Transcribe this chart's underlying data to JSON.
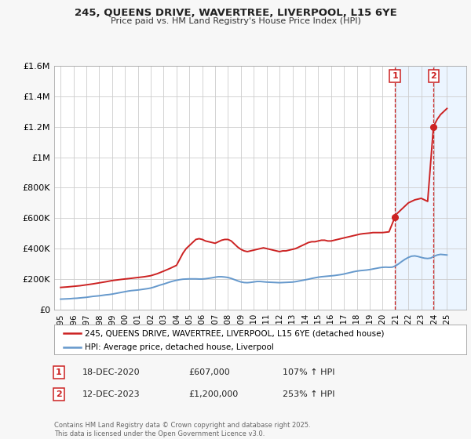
{
  "title": "245, QUEENS DRIVE, WAVERTREE, LIVERPOOL, L15 6YE",
  "subtitle": "Price paid vs. HM Land Registry's House Price Index (HPI)",
  "ylim": [
    0,
    1600000
  ],
  "xlim": [
    1994.5,
    2026.5
  ],
  "yticks": [
    0,
    200000,
    400000,
    600000,
    800000,
    1000000,
    1200000,
    1400000,
    1600000
  ],
  "ytick_labels": [
    "£0",
    "£200K",
    "£400K",
    "£600K",
    "£800K",
    "£1M",
    "£1.2M",
    "£1.4M",
    "£1.6M"
  ],
  "xtick_years": [
    1995,
    1996,
    1997,
    1998,
    1999,
    2000,
    2001,
    2002,
    2003,
    2004,
    2005,
    2006,
    2007,
    2008,
    2009,
    2010,
    2011,
    2012,
    2013,
    2014,
    2015,
    2016,
    2017,
    2018,
    2019,
    2020,
    2021,
    2022,
    2023,
    2024,
    2025
  ],
  "hpi_color": "#6699cc",
  "price_color": "#cc2222",
  "marker1_x": 2020.96,
  "marker1_y": 607000,
  "marker2_x": 2023.95,
  "marker2_y": 1200000,
  "vline1_x": 2020.96,
  "vline2_x": 2023.95,
  "shade_start": 2020.96,
  "shade_end": 2026.5,
  "legend_label1": "245, QUEENS DRIVE, WAVERTREE, LIVERPOOL, L15 6YE (detached house)",
  "legend_label2": "HPI: Average price, detached house, Liverpool",
  "ann1_label": "1",
  "ann2_label": "2",
  "ann1_date": "18-DEC-2020",
  "ann1_price": "£607,000",
  "ann1_hpi": "107% ↑ HPI",
  "ann2_date": "12-DEC-2023",
  "ann2_price": "£1,200,000",
  "ann2_hpi": "253% ↑ HPI",
  "footer": "Contains HM Land Registry data © Crown copyright and database right 2025.\nThis data is licensed under the Open Government Licence v3.0.",
  "bg_color": "#f7f7f7",
  "plot_bg_color": "#ffffff",
  "grid_color": "#cccccc",
  "shade_color": "#ddeeff",
  "hpi_data_x": [
    1995.0,
    1995.25,
    1995.5,
    1995.75,
    1996.0,
    1996.25,
    1996.5,
    1996.75,
    1997.0,
    1997.25,
    1997.5,
    1997.75,
    1998.0,
    1998.25,
    1998.5,
    1998.75,
    1999.0,
    1999.25,
    1999.5,
    1999.75,
    2000.0,
    2000.25,
    2000.5,
    2000.75,
    2001.0,
    2001.25,
    2001.5,
    2001.75,
    2002.0,
    2002.25,
    2002.5,
    2002.75,
    2003.0,
    2003.25,
    2003.5,
    2003.75,
    2004.0,
    2004.25,
    2004.5,
    2004.75,
    2005.0,
    2005.25,
    2005.5,
    2005.75,
    2006.0,
    2006.25,
    2006.5,
    2006.75,
    2007.0,
    2007.25,
    2007.5,
    2007.75,
    2008.0,
    2008.25,
    2008.5,
    2008.75,
    2009.0,
    2009.25,
    2009.5,
    2009.75,
    2010.0,
    2010.25,
    2010.5,
    2010.75,
    2011.0,
    2011.25,
    2011.5,
    2011.75,
    2012.0,
    2012.25,
    2012.5,
    2012.75,
    2013.0,
    2013.25,
    2013.5,
    2013.75,
    2014.0,
    2014.25,
    2014.5,
    2014.75,
    2015.0,
    2015.25,
    2015.5,
    2015.75,
    2016.0,
    2016.25,
    2016.5,
    2016.75,
    2017.0,
    2017.25,
    2017.5,
    2017.75,
    2018.0,
    2018.25,
    2018.5,
    2018.75,
    2019.0,
    2019.25,
    2019.5,
    2019.75,
    2020.0,
    2020.25,
    2020.5,
    2020.75,
    2021.0,
    2021.25,
    2021.5,
    2021.75,
    2022.0,
    2022.25,
    2022.5,
    2022.75,
    2023.0,
    2023.25,
    2023.5,
    2023.75,
    2024.0,
    2024.25,
    2024.5,
    2024.75,
    2025.0
  ],
  "hpi_data_y": [
    68000,
    69000,
    70000,
    71000,
    73000,
    74000,
    76000,
    78000,
    80000,
    83000,
    86000,
    88000,
    90000,
    93000,
    96000,
    98000,
    101000,
    105000,
    109000,
    113000,
    117000,
    121000,
    124000,
    126000,
    128000,
    131000,
    134000,
    137000,
    141000,
    147000,
    154000,
    161000,
    167000,
    174000,
    181000,
    187000,
    192000,
    196000,
    199000,
    200000,
    201000,
    201000,
    201000,
    200000,
    200000,
    202000,
    205000,
    208000,
    212000,
    215000,
    215000,
    213000,
    210000,
    204000,
    196000,
    188000,
    181000,
    177000,
    176000,
    178000,
    181000,
    184000,
    184000,
    182000,
    180000,
    179000,
    178000,
    177000,
    176000,
    177000,
    178000,
    179000,
    180000,
    183000,
    187000,
    191000,
    195000,
    199000,
    204000,
    208000,
    212000,
    215000,
    217000,
    219000,
    221000,
    223000,
    226000,
    229000,
    233000,
    238000,
    243000,
    248000,
    252000,
    255000,
    257000,
    259000,
    262000,
    266000,
    270000,
    274000,
    277000,
    278000,
    277000,
    278000,
    286000,
    300000,
    316000,
    330000,
    342000,
    350000,
    352000,
    348000,
    342000,
    337000,
    335000,
    338000,
    350000,
    358000,
    362000,
    360000,
    358000
  ],
  "price_data_x": [
    1995.0,
    1995.5,
    1996.0,
    1996.5,
    1997.0,
    1997.5,
    1998.0,
    1998.5,
    1999.0,
    1999.75,
    2000.5,
    2001.0,
    2001.5,
    2002.0,
    2002.5,
    2003.0,
    2003.5,
    2004.0,
    2004.5,
    2004.75,
    2005.0,
    2005.25,
    2005.5,
    2005.75,
    2006.0,
    2006.25,
    2006.5,
    2006.75,
    2007.0,
    2007.25,
    2007.5,
    2007.75,
    2008.0,
    2008.25,
    2008.5,
    2008.75,
    2009.0,
    2009.25,
    2009.5,
    2009.75,
    2010.0,
    2010.25,
    2010.5,
    2010.75,
    2011.0,
    2011.25,
    2011.5,
    2011.75,
    2012.0,
    2012.25,
    2012.5,
    2012.75,
    2013.0,
    2013.25,
    2013.5,
    2013.75,
    2014.0,
    2014.25,
    2014.5,
    2014.75,
    2015.0,
    2015.25,
    2015.5,
    2015.75,
    2016.0,
    2016.25,
    2016.5,
    2016.75,
    2017.0,
    2017.25,
    2017.5,
    2017.75,
    2018.0,
    2018.25,
    2018.5,
    2018.75,
    2019.0,
    2019.25,
    2019.5,
    2019.75,
    2020.0,
    2020.5,
    2020.96,
    2021.0,
    2021.25,
    2021.5,
    2021.75,
    2022.0,
    2022.25,
    2022.5,
    2022.75,
    2023.0,
    2023.25,
    2023.5,
    2023.95,
    2024.0,
    2024.25,
    2024.5,
    2024.75,
    2025.0
  ],
  "price_data_y": [
    145000,
    148000,
    152000,
    156000,
    162000,
    168000,
    175000,
    182000,
    190000,
    198000,
    205000,
    210000,
    215000,
    222000,
    235000,
    252000,
    270000,
    290000,
    370000,
    400000,
    420000,
    440000,
    460000,
    465000,
    460000,
    450000,
    445000,
    440000,
    435000,
    445000,
    455000,
    460000,
    460000,
    450000,
    430000,
    410000,
    395000,
    385000,
    380000,
    385000,
    390000,
    395000,
    400000,
    405000,
    400000,
    395000,
    390000,
    385000,
    380000,
    385000,
    385000,
    390000,
    395000,
    400000,
    410000,
    420000,
    430000,
    440000,
    445000,
    445000,
    450000,
    455000,
    455000,
    450000,
    450000,
    455000,
    460000,
    465000,
    470000,
    475000,
    480000,
    485000,
    490000,
    495000,
    498000,
    500000,
    502000,
    505000,
    505000,
    505000,
    505000,
    510000,
    607000,
    620000,
    640000,
    660000,
    680000,
    700000,
    710000,
    720000,
    725000,
    730000,
    720000,
    710000,
    1200000,
    1210000,
    1250000,
    1280000,
    1300000,
    1320000
  ]
}
